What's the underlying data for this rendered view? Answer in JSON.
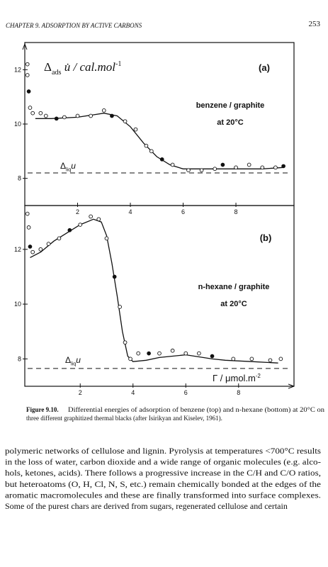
{
  "header": {
    "chapter": "CHAPTER 9. ADSORPTION BY ACTIVE CARBONS",
    "page": "253"
  },
  "chart_data": [
    {
      "type": "scatter",
      "y_label": {
        "symbol": "Δ",
        "sub": "ads",
        "rest": " u̇ / cal.mol",
        "sup": "-1"
      },
      "annotations": [
        "(a)",
        "benzene / graphite",
        "at 20°C"
      ],
      "reference_label": {
        "symbol": "Δ",
        "sub": "liq",
        "rest": "u"
      },
      "reference_line": 8.2,
      "xlim": [
        0,
        10.2
      ],
      "ylim": [
        7.0,
        13.0
      ],
      "xticks": [
        2,
        4,
        6,
        8
      ],
      "yticks": [
        8,
        10,
        12
      ],
      "points": {
        "x": [
          0.1,
          0.1,
          0.15,
          0.2,
          0.3,
          0.6,
          0.8,
          1.2,
          1.5,
          2,
          2.5,
          3,
          3.3,
          3.8,
          4.2,
          4.6,
          4.8,
          5.2,
          5.6,
          6.2,
          6.7,
          7.2,
          7.5,
          8,
          8.5,
          9,
          9.5,
          9.8
        ],
        "y": [
          12.2,
          11.8,
          11.2,
          10.6,
          10.4,
          10.4,
          10.3,
          10.2,
          10.25,
          10.3,
          10.3,
          10.5,
          10.3,
          10.1,
          9.8,
          9.2,
          9.0,
          8.7,
          8.5,
          8.3,
          8.3,
          8.35,
          8.5,
          8.4,
          8.5,
          8.4,
          8.4,
          8.45
        ]
      },
      "curve": {
        "x": [
          0.4,
          1,
          2,
          3,
          3.5,
          4,
          4.5,
          5,
          5.5,
          6,
          7,
          8,
          9,
          9.8
        ],
        "y": [
          10.2,
          10.2,
          10.25,
          10.4,
          10.3,
          9.9,
          9.3,
          8.8,
          8.5,
          8.35,
          8.35,
          8.35,
          8.35,
          8.4
        ]
      }
    },
    {
      "type": "scatter",
      "x_label": {
        "symbol": "Γ",
        "rest": " / μmol.m",
        "sup": "-2"
      },
      "annotations": [
        "(b)",
        "n-hexane / graphite",
        "at 20°C"
      ],
      "reference_label": {
        "symbol": "Δ",
        "sub": "liq",
        "rest": "u"
      },
      "reference_line": 7.65,
      "xlim": [
        -0.1,
        10.1
      ],
      "ylim": [
        7.0,
        13.6
      ],
      "xticks": [
        2,
        4,
        6,
        8
      ],
      "yticks": [
        8,
        10,
        12
      ],
      "points": {
        "x": [
          0.0,
          0.05,
          0.1,
          0.2,
          0.5,
          0.8,
          1.2,
          1.6,
          2,
          2.4,
          2.7,
          3,
          3.3,
          3.5,
          3.7,
          3.9,
          4.2,
          4.6,
          5,
          5.5,
          6,
          6.5,
          7,
          7.8,
          8.5,
          9.2,
          9.6
        ],
        "y": [
          13.3,
          12.8,
          12.1,
          11.9,
          12.0,
          12.2,
          12.4,
          12.7,
          12.9,
          13.2,
          13.1,
          12.4,
          11.0,
          9.9,
          8.6,
          8.0,
          8.2,
          8.2,
          8.2,
          8.3,
          8.2,
          8.2,
          8.1,
          8.0,
          8.0,
          7.95,
          8.0
        ]
      },
      "curve": {
        "x": [
          0.1,
          0.5,
          1,
          1.5,
          2,
          2.5,
          2.8,
          3,
          3.2,
          3.4,
          3.6,
          3.8,
          4,
          4.5,
          5,
          5.5,
          6,
          7,
          7.5,
          8.5,
          9.5
        ],
        "y": [
          11.7,
          11.9,
          12.3,
          12.6,
          12.9,
          13.1,
          13.0,
          12.5,
          11.5,
          10.3,
          9.0,
          8.1,
          7.9,
          7.95,
          8.05,
          8.1,
          8.15,
          8.0,
          7.95,
          7.9,
          7.85
        ]
      }
    }
  ],
  "caption": {
    "label": "Figure 9.10.",
    "lines": [
      "Differential energies of adsorption of benzene (top) and n-hexane (bottom) at 20°C on",
      "three different graphitized thermal blacks (after Isirikyan and Kiselev, 1961)."
    ]
  },
  "body": [
    "polymeric networks of cellulose and lignin. Pyrolysis at temperatures <700°C results",
    "in the loss of water, carbon dioxide and a wide range of organic molecules (e.g. alco-",
    "hols, ketones, acids). There follows a progressive increase in the C/H and C/O ratios,",
    "but heteroatoms (O, H, Cl, N, S, etc.) remain chemically bonded at the edges of the",
    "aromatic macromolecules and these are finally transformed into surface complexes.",
    "Some of the purest chars are derived from sugars, regenerated cellulose and certain"
  ]
}
